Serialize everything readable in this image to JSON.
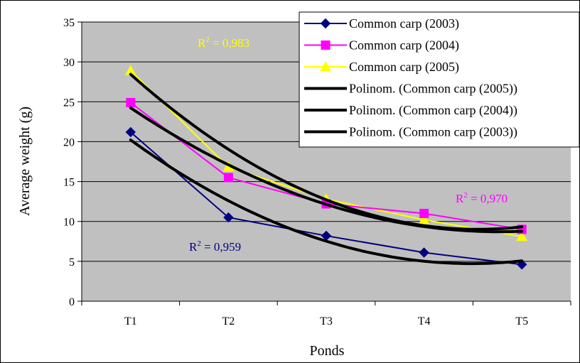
{
  "chart_data": {
    "type": "line",
    "title": "",
    "xlabel": "Ponds",
    "ylabel": "Average weight (g)",
    "categories": [
      "T1",
      "T2",
      "T3",
      "T4",
      "T5"
    ],
    "ylim": [
      0,
      35
    ],
    "yticks": [
      0,
      5,
      10,
      15,
      20,
      25,
      30,
      35
    ],
    "grid": true,
    "legend": "top-right",
    "series": [
      {
        "name": "Common carp (2003)",
        "values": [
          21.2,
          10.5,
          8.2,
          6.1,
          4.6
        ],
        "color": "#000080",
        "marker": "diamond"
      },
      {
        "name": "Common carp (2004)",
        "values": [
          24.9,
          15.5,
          12.2,
          11.0,
          9.0
        ],
        "color": "#ff00ff",
        "marker": "square"
      },
      {
        "name": "Common carp (2005)",
        "values": [
          28.9,
          16.8,
          12.8,
          10.2,
          8.1
        ],
        "color": "#ffff00",
        "marker": "triangle"
      }
    ],
    "trendlines": [
      {
        "name": "Polinom. (Common carp (2005))",
        "type": "polynomial",
        "order": 2,
        "values": [
          28.4,
          19.2,
          12.5,
          9.6,
          9.3
        ],
        "color": "#000000"
      },
      {
        "name": "Polinom. (Common carp (2004))",
        "type": "polynomial",
        "order": 2,
        "values": [
          24.3,
          17.0,
          12.1,
          9.5,
          8.7
        ],
        "color": "#000000"
      },
      {
        "name": "Polinom. (Common carp (2003))",
        "type": "polynomial",
        "order": 2,
        "values": [
          20.3,
          12.4,
          7.6,
          5.1,
          5.0
        ],
        "color": "#000000"
      }
    ],
    "annotations": [
      {
        "label": "r2_2005",
        "prefix": "R",
        "sup": "2",
        "text": " = 0,983",
        "color": "#ffff00"
      },
      {
        "label": "r2_2004",
        "prefix": "R",
        "sup": "2",
        "text": " = 0,970",
        "color": "#ff00ff"
      },
      {
        "label": "r2_2003",
        "prefix": "R",
        "sup": "2",
        "text": " = 0,959",
        "color": "#000080"
      }
    ],
    "plot_background": "#c0c0c0",
    "gridline_color": "#000000"
  }
}
